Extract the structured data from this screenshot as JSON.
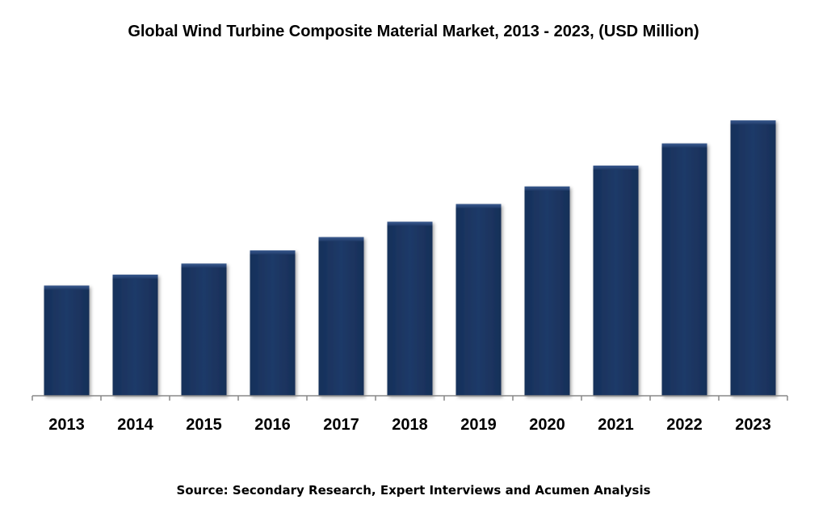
{
  "chart_data": {
    "type": "bar",
    "title": "Global Wind Turbine Composite Material Market, 2013 - 2023, (USD Million)",
    "categories": [
      "2013",
      "2014",
      "2015",
      "2016",
      "2017",
      "2018",
      "2019",
      "2020",
      "2021",
      "2022",
      "2023"
    ],
    "values": [
      100,
      110,
      120,
      132,
      144,
      158,
      174,
      190,
      209,
      229,
      250
    ],
    "xlabel": "",
    "ylabel": "",
    "ylim": [
      0,
      275
    ],
    "grid": false,
    "source": "Source: Secondary Research, Expert Interviews and Acumen Analysis",
    "bar_color": "#1f3a68",
    "bar_top_color": "#3a5a8f"
  }
}
